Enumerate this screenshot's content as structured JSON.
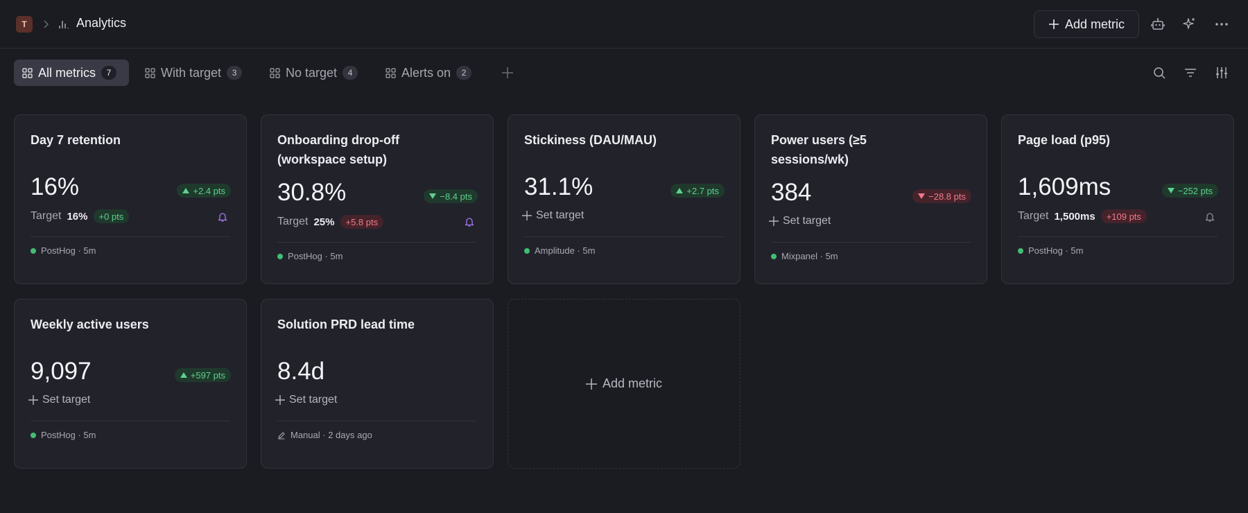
{
  "header": {
    "workspace_initial": "T",
    "title": "Analytics",
    "add_metric_label": "Add metric"
  },
  "tabs": [
    {
      "label": "All metrics",
      "count": "7",
      "active": true
    },
    {
      "label": "With target",
      "count": "3",
      "active": false
    },
    {
      "label": "No target",
      "count": "4",
      "active": false
    },
    {
      "label": "Alerts on",
      "count": "2",
      "active": false
    }
  ],
  "cards": [
    {
      "title": "Day 7 retention",
      "value": "16%",
      "delta": "+2.4 pts",
      "delta_dir": "up",
      "delta_tone": "good",
      "target_label": "Target",
      "target_value": "16%",
      "target_delta": "+0 pts",
      "target_delta_tone": "good",
      "source": "PostHog · 5m"
    },
    {
      "title": "Onboarding drop-off (workspace setup)",
      "value": "30.8%",
      "delta": "−8.4 pts",
      "delta_dir": "down",
      "delta_tone": "good",
      "target_label": "Target",
      "target_value": "25%",
      "target_delta": "+5.8 pts",
      "target_delta_tone": "bad",
      "source": "PostHog · 5m"
    },
    {
      "title": "Stickiness (DAU/MAU)",
      "value": "31.1%",
      "delta": "+2.7 pts",
      "delta_dir": "up",
      "delta_tone": "good",
      "set_target_label": "Set target",
      "source": "Amplitude · 5m"
    },
    {
      "title": "Power users (≥5 sessions/wk)",
      "value": "384",
      "delta": "−28.8 pts",
      "delta_dir": "down",
      "delta_tone": "bad",
      "set_target_label": "Set target",
      "source": "Mixpanel · 5m"
    },
    {
      "title": "Page load (p95)",
      "value": "1,609ms",
      "delta": "−252 pts",
      "delta_dir": "down",
      "delta_tone": "good",
      "target_label": "Target",
      "target_value": "1,500ms",
      "target_delta": "+109 pts",
      "target_delta_tone": "bad",
      "source": "PostHog · 5m"
    },
    {
      "title": "Weekly active users",
      "value": "9,097",
      "delta": "+597 pts",
      "delta_dir": "up",
      "delta_tone": "good",
      "set_target_label": "Set target",
      "source": "PostHog · 5m"
    },
    {
      "title": "Solution PRD lead time",
      "value": "8.4d",
      "set_target_label": "Set target",
      "source": "Manual · 2 days ago"
    }
  ],
  "add_card_label": "Add metric",
  "colors": {
    "background": "#1b1b22",
    "card": "#22222b",
    "good": "#5fd08f",
    "bad": "#f27a8a",
    "bell_active": "#a479f0",
    "source_dot": "#3fbf73"
  }
}
